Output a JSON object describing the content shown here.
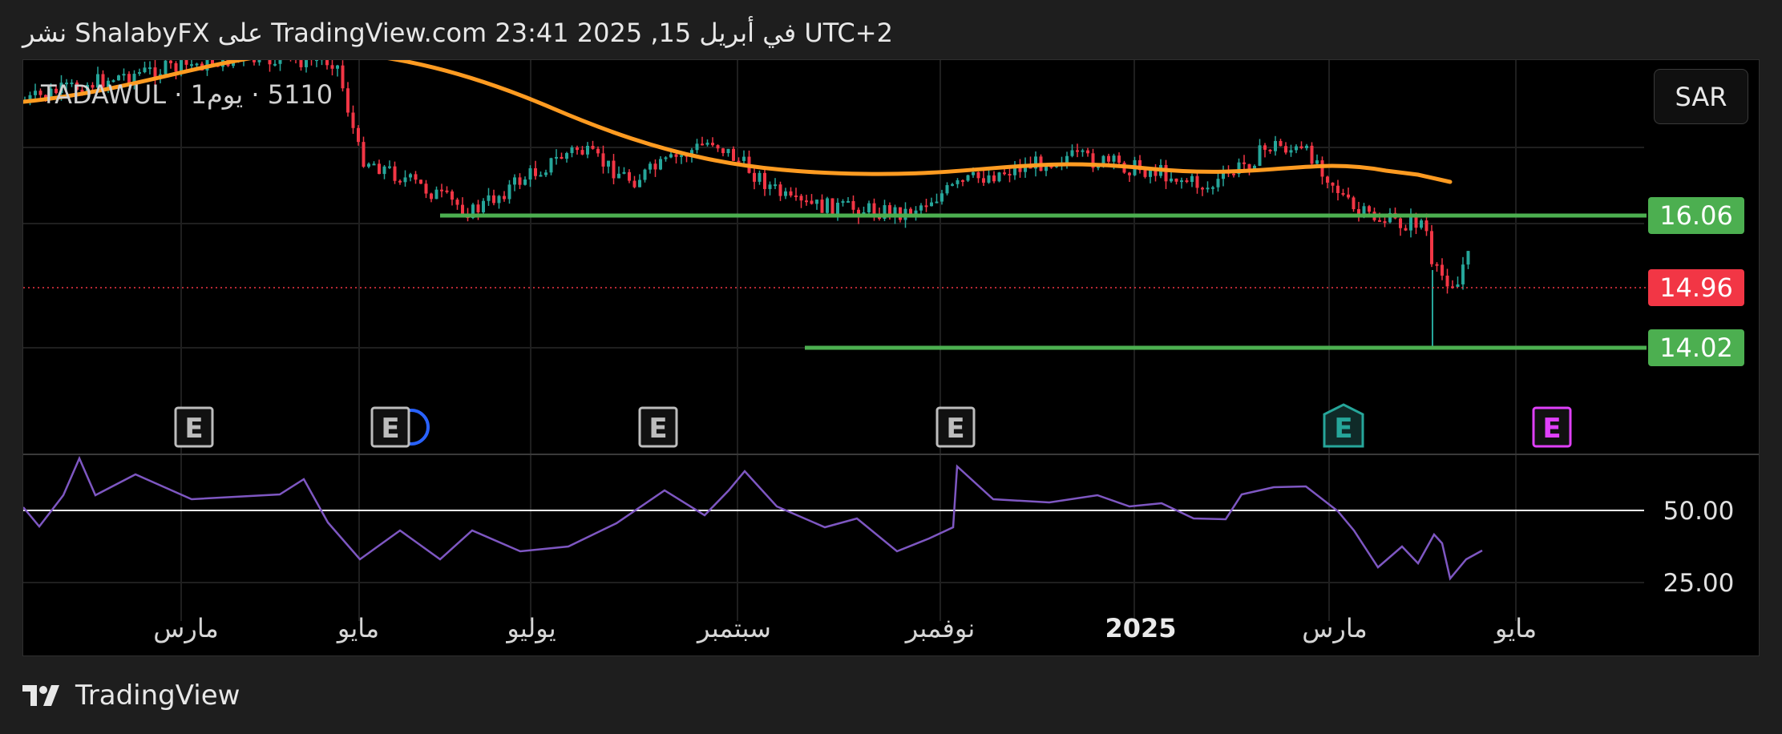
{
  "header": {
    "text": "نشر ShalabyFX على TradingView.com 23:41 2025 ,15 في أبريل UTC+2"
  },
  "symbol": {
    "label": "5110 · يوم1 · TADAWUL"
  },
  "currency_button": {
    "label": "SAR"
  },
  "footer": {
    "brand": "TradingView"
  },
  "colors": {
    "up": "#26a69a",
    "down": "#f23645",
    "ma": "#ff9b21",
    "level_line": "#4caf50",
    "level_badge": "#4caf50",
    "last_price_badge": "#f23645",
    "rsi_line": "#7e57c2",
    "rsi_midline": "#ffffff",
    "grid": "#1f1f1f",
    "earnings_gray": "#bdbdbd",
    "earnings_teal": "#26a69a",
    "earnings_purple": "#e040fb",
    "dividend_blue": "#2962ff"
  },
  "chart_data": {
    "type": "candlestick",
    "x_labels": [
      "مارس",
      "مايو",
      "يوليو",
      "سبتمبر",
      "نوفمبر",
      "2025",
      "مارس",
      "مايو"
    ],
    "price_levels": [
      {
        "value": 16.06,
        "label": "16.06",
        "badge": "level"
      },
      {
        "value": 14.96,
        "label": "14.96",
        "badge": "last"
      },
      {
        "value": 14.02,
        "label": "14.02",
        "badge": "level"
      }
    ],
    "rsi": {
      "ticks": [
        "50.00",
        "25.00"
      ],
      "midline": 50
    },
    "events": [
      {
        "label": "E",
        "style": "gray"
      },
      {
        "label": "E",
        "style": "gray",
        "dividend": true
      },
      {
        "label": "E",
        "style": "gray"
      },
      {
        "label": "E",
        "style": "gray"
      },
      {
        "label": "E",
        "style": "teal-shield"
      },
      {
        "label": "E",
        "style": "purple"
      }
    ]
  }
}
